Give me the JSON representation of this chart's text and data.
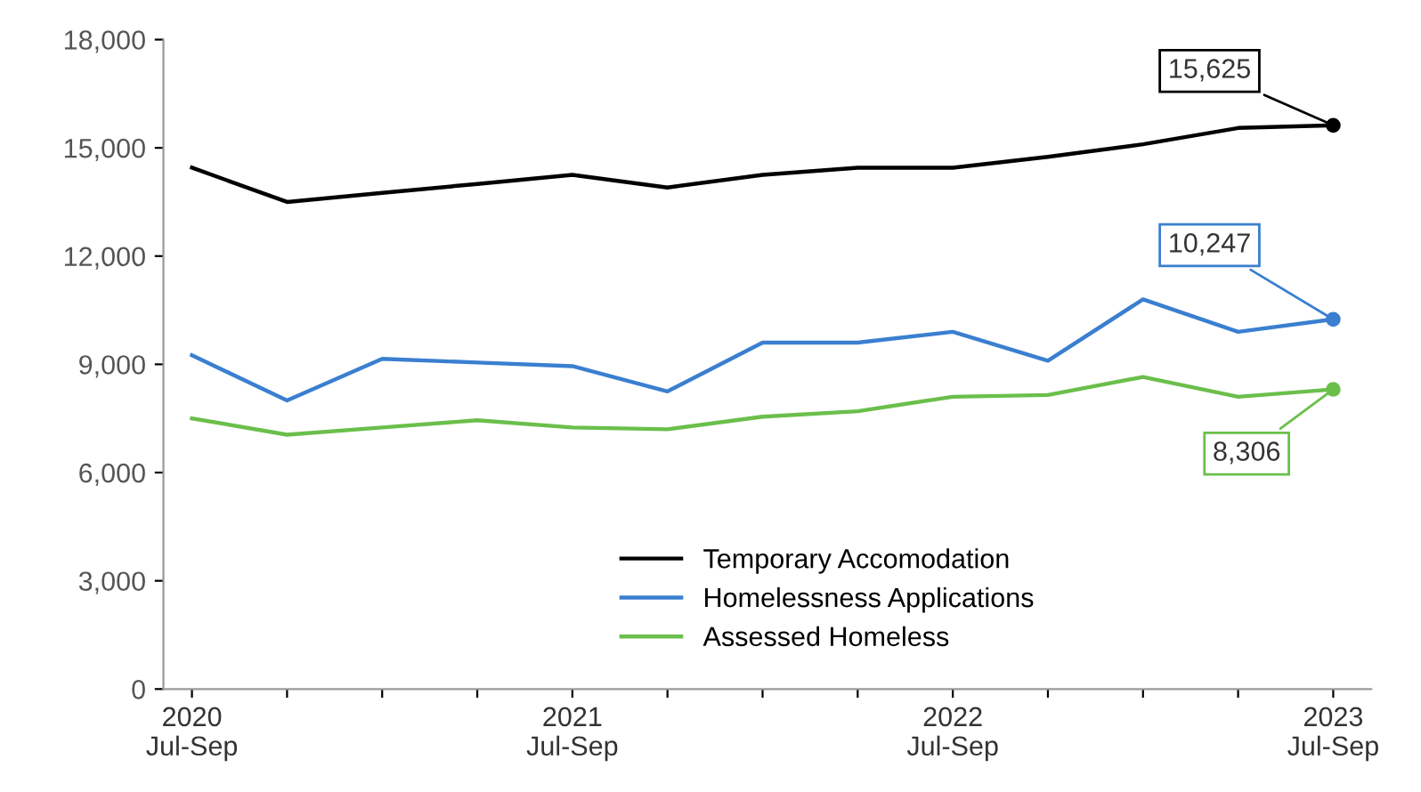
{
  "chart_data": {
    "type": "line",
    "categories": [
      "2020\nJul-Sep",
      null,
      null,
      null,
      "2021\nJul-Sep",
      null,
      null,
      null,
      "2022\nJul-Sep",
      null,
      null,
      null,
      "2023\nJul-Sep"
    ],
    "series": [
      {
        "name": "Temporary Accomodation",
        "color": "#000000",
        "values": [
          14450,
          13500,
          13750,
          14000,
          14250,
          13900,
          14250,
          14450,
          14450,
          14750,
          15100,
          15550,
          15625
        ],
        "value_labels": [
          null,
          null,
          null,
          null,
          null,
          null,
          null,
          null,
          null,
          null,
          null,
          null,
          "15,625"
        ]
      },
      {
        "name": "Homelessness Applications",
        "color": "#3a7fd0",
        "values": [
          9250,
          8000,
          9150,
          9050,
          8950,
          8250,
          9600,
          9600,
          9900,
          9100,
          10800,
          9900,
          10247
        ],
        "value_labels": [
          null,
          null,
          null,
          null,
          null,
          null,
          null,
          null,
          null,
          null,
          null,
          null,
          "10,247"
        ]
      },
      {
        "name": "Assessed Homeless",
        "color": "#6abf4b",
        "values": [
          7500,
          7050,
          7250,
          7450,
          7250,
          7200,
          7550,
          7700,
          8100,
          8150,
          8650,
          8100,
          8306
        ],
        "value_labels": [
          null,
          null,
          null,
          null,
          null,
          null,
          null,
          null,
          null,
          null,
          null,
          null,
          "8,306"
        ]
      }
    ],
    "ylim": [
      0,
      18000
    ],
    "yticks": [
      {
        "value": 0,
        "label": "0"
      },
      {
        "value": 3000,
        "label": "3,000"
      },
      {
        "value": 6000,
        "label": "6,000"
      },
      {
        "value": 9000,
        "label": "9,000"
      },
      {
        "value": 12000,
        "label": "12,000"
      },
      {
        "value": 15000,
        "label": "15,000"
      },
      {
        "value": 18000,
        "label": "18,000"
      }
    ],
    "legend": "bottom",
    "grid": false
  }
}
